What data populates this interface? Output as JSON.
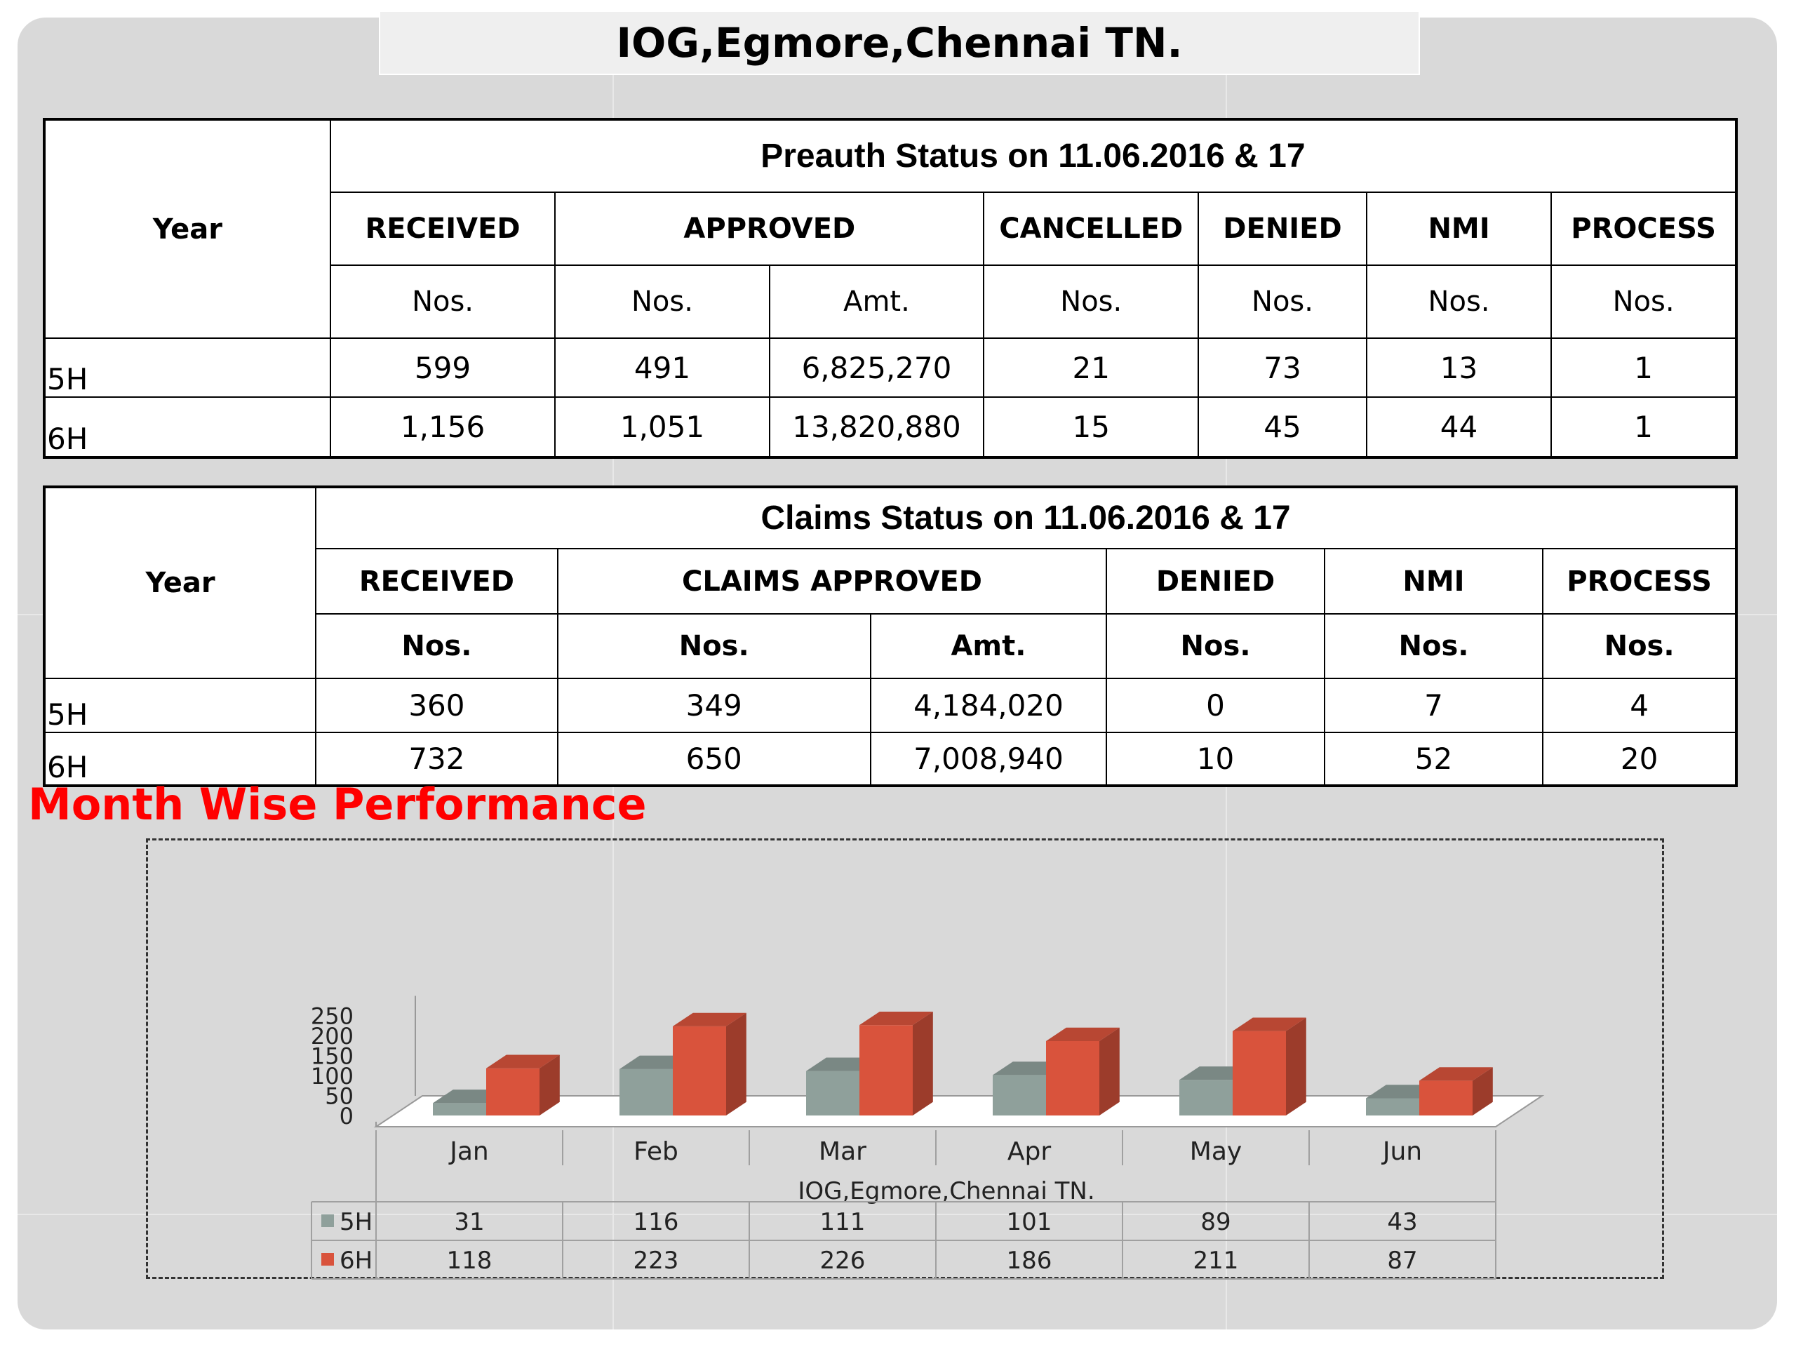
{
  "page_title": "IOG,Egmore,Chennai TN.",
  "preauth": {
    "title": "Preauth Status on 11.06.2016 & 17",
    "year_label": "Year",
    "columns": [
      "RECEIVED",
      "APPROVED",
      "CANCELLED",
      "DENIED",
      "NMI",
      "PROCESS"
    ],
    "sub": [
      "Nos.",
      "Nos.",
      "Amt.",
      "Nos.",
      "Nos.",
      "Nos.",
      "Nos."
    ],
    "rows": [
      {
        "year": "5H",
        "cells": [
          "599",
          "491",
          "6,825,270",
          "21",
          "73",
          "13",
          "1"
        ]
      },
      {
        "year": "6H",
        "cells": [
          "1,156",
          "1,051",
          "13,820,880",
          "15",
          "45",
          "44",
          "1"
        ]
      }
    ]
  },
  "claims": {
    "title": "Claims Status on 11.06.2016 & 17",
    "year_label": "Year",
    "columns": [
      "RECEIVED",
      "CLAIMS APPROVED",
      "DENIED",
      "NMI",
      "PROCESS"
    ],
    "sub": [
      "Nos.",
      "Nos.",
      "Amt.",
      "Nos.",
      "Nos.",
      "Nos."
    ],
    "rows": [
      {
        "year": "5H",
        "cells": [
          "360",
          "349",
          "4,184,020",
          "0",
          "7",
          "4"
        ]
      },
      {
        "year": "6H",
        "cells": [
          "732",
          "650",
          "7,008,940",
          "10",
          "52",
          "20"
        ]
      }
    ]
  },
  "section_title": "Month Wise Performance",
  "chart_data": {
    "type": "bar",
    "categories": [
      "Jan",
      "Feb",
      "Mar",
      "Apr",
      "May",
      "Jun"
    ],
    "xlabel": "IOG,Egmore,Chennai TN.",
    "ylim": [
      0,
      250
    ],
    "yticks": [
      "0",
      "50",
      "100",
      "150",
      "200",
      "250"
    ],
    "series": [
      {
        "name": "5H",
        "values": [
          31,
          116,
          111,
          101,
          89,
          43
        ],
        "color": "#8fa09b"
      },
      {
        "name": "6H",
        "values": [
          118,
          223,
          226,
          186,
          211,
          87
        ],
        "color": "#d9533c"
      }
    ],
    "data_table": true
  }
}
